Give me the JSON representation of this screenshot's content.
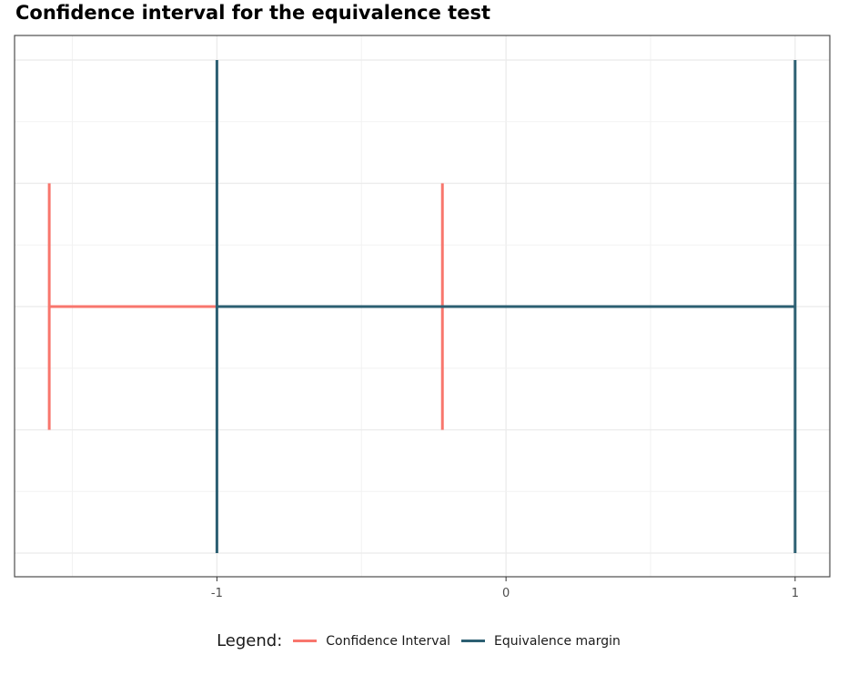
{
  "chart_data": {
    "type": "line",
    "title": "Confidence interval for the equivalence test",
    "xlabel": "",
    "ylabel": "",
    "xlim": [
      -1.7,
      1.12
    ],
    "ylim": [
      0,
      1
    ],
    "x_ticks": [
      -1,
      0,
      1
    ],
    "x_tick_labels": [
      "-1",
      "0",
      "1"
    ],
    "grid": true,
    "legend_position": "bottom",
    "legend_title": "Legend:",
    "series": [
      {
        "name": "Confidence Interval",
        "color": "#F8766D",
        "lower": -1.58,
        "upper": -0.22,
        "center_y": 0.5,
        "whisker_y": [
          0.25,
          0.75
        ]
      },
      {
        "name": "Equivalence margin",
        "color": "#2C5F72",
        "lower": -1,
        "upper": 1,
        "center_y": 0.5,
        "whisker_y": [
          0.0,
          1.0
        ]
      }
    ]
  }
}
